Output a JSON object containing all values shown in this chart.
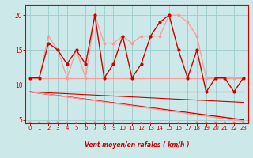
{
  "xlabel": "Vent moyen/en rafales ( km/h )",
  "xlim": [
    -0.5,
    23.5
  ],
  "ylim": [
    4.5,
    21.5
  ],
  "yticks": [
    5,
    10,
    15,
    20
  ],
  "xticks": [
    0,
    1,
    2,
    3,
    4,
    5,
    6,
    7,
    8,
    9,
    10,
    11,
    12,
    13,
    14,
    15,
    16,
    17,
    18,
    19,
    20,
    21,
    22,
    23
  ],
  "bg_color": "#cce8e8",
  "grid_color": "#99cccc",
  "dark_red": "#cc0000",
  "light_red": "#ff9999",
  "series": [
    {
      "x": [
        0,
        23
      ],
      "y": [
        11,
        11
      ],
      "color": "#ff9999",
      "lw": 0.8,
      "marker": null
    },
    {
      "x": [
        0,
        23
      ],
      "y": [
        9,
        9
      ],
      "color": "#cc0000",
      "lw": 0.8,
      "marker": null
    },
    {
      "x": [
        0,
        23
      ],
      "y": [
        9.0,
        7.5
      ],
      "color": "#cc0000",
      "lw": 0.8,
      "marker": null
    },
    {
      "x": [
        0,
        23
      ],
      "y": [
        9.0,
        5.0
      ],
      "color": "#cc0000",
      "lw": 1.0,
      "marker": null
    },
    {
      "x": [
        0,
        23
      ],
      "y": [
        9.0,
        4.8
      ],
      "color": "#ff9999",
      "lw": 1.0,
      "marker": null
    },
    {
      "x": [
        0,
        1,
        2,
        3,
        4,
        5,
        6,
        7,
        8,
        9,
        10,
        11,
        12,
        13,
        14,
        15,
        16,
        17,
        18,
        19,
        20,
        21,
        22,
        23
      ],
      "y": [
        11,
        11,
        17,
        15,
        11,
        15,
        11,
        20,
        16,
        16,
        17,
        16,
        17,
        17,
        17,
        20,
        20,
        19,
        17,
        11,
        11,
        11,
        11,
        11
      ],
      "color": "#ff9999",
      "lw": 0.9,
      "marker": "o",
      "ms": 1.8
    },
    {
      "x": [
        0,
        1,
        2,
        3,
        4,
        5,
        6,
        7,
        8,
        9,
        10,
        11,
        12,
        13,
        14,
        15,
        16,
        17,
        18,
        19,
        20,
        21,
        22,
        23
      ],
      "y": [
        11,
        11,
        16,
        15,
        13,
        15,
        13,
        20,
        11,
        13,
        17,
        11,
        13,
        17,
        19,
        20,
        15,
        11,
        15,
        9,
        11,
        11,
        9,
        11
      ],
      "color": "#cc0000",
      "lw": 1.0,
      "marker": "o",
      "ms": 2.0
    }
  ],
  "arrow_angles": [
    45,
    45,
    45,
    45,
    0,
    0,
    45,
    45,
    0,
    0,
    0,
    0,
    0,
    0,
    0,
    0,
    0,
    0,
    45,
    45,
    45,
    45,
    45,
    45
  ]
}
